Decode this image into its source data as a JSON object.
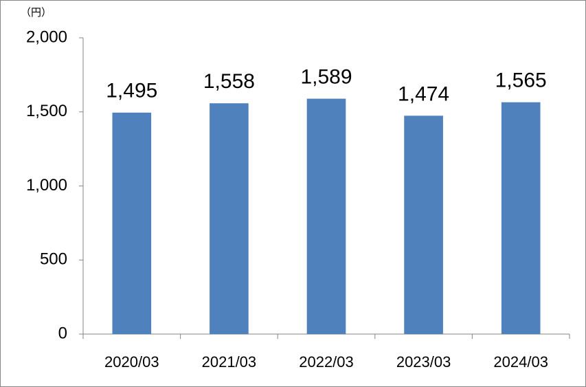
{
  "chart_data": {
    "type": "bar",
    "unit_label": "（円）",
    "categories": [
      "2020/03",
      "2021/03",
      "2022/03",
      "2023/03",
      "2024/03"
    ],
    "values": [
      1495,
      1558,
      1589,
      1474,
      1565
    ],
    "value_labels": [
      "1,495",
      "1,558",
      "1,589",
      "1,474",
      "1,565"
    ],
    "color": "#4f81bd",
    "ylim": [
      0,
      2000
    ],
    "yticks": [
      0,
      500,
      {
        "value": 1000,
        "label": "1,000"
      },
      {
        "value": 1500,
        "label": "1,500"
      },
      {
        "value": 2000,
        "label": "2,000"
      }
    ],
    "grid": false
  }
}
